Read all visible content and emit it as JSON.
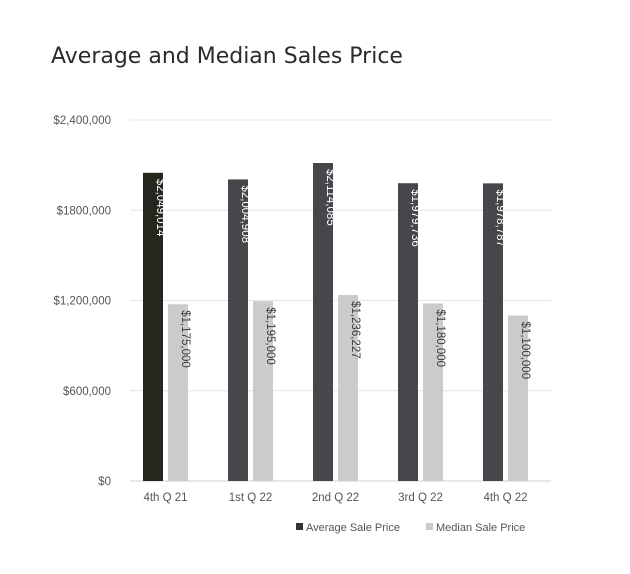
{
  "chart_data": {
    "type": "bar",
    "title": "Average and Median Sales Price",
    "xlabel": "",
    "ylabel": "",
    "categories": [
      "4th Q 21",
      "1st Q 22",
      "2nd Q 22",
      "3rd Q 22",
      "4th Q 22"
    ],
    "series": [
      {
        "name": "Average Sale Price",
        "values": [
          2049014,
          2004908,
          2114085,
          1979736,
          1978787
        ],
        "labels": [
          "$2,049,014",
          "$2,004,908",
          "$2,114,085",
          "$1,979,736",
          "$1,978,787"
        ],
        "color": "#45474a",
        "highlight_first_color": "#26261f"
      },
      {
        "name": "Median Sale Price",
        "values": [
          1175000,
          1195000,
          1236227,
          1180000,
          1100000
        ],
        "labels": [
          "$1,175,000",
          "$1,195,000",
          "$1,236,227",
          "$1,180,000",
          "$1,100,000"
        ],
        "color": "#cbcbcb"
      }
    ],
    "ylim": [
      0,
      2400000
    ],
    "yticks": [
      0,
      600000,
      1200000,
      1800000,
      2400000
    ],
    "ytick_labels": [
      "$0",
      "$600,000",
      "$1,200,000",
      "$1800,000",
      "$2,400,000"
    ],
    "grid": true,
    "legend_position": "bottom-right"
  }
}
